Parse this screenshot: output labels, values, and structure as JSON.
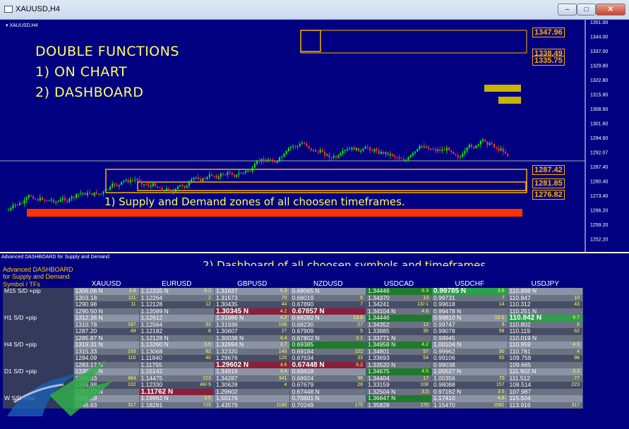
{
  "window": {
    "title": "XAUUSD,H4",
    "min": "–",
    "max": "□",
    "close": "✕"
  },
  "chart": {
    "symbol_tag": "▾ XAUUSD,H4",
    "overlay": {
      "line1": "DOUBLE FUNCTIONS",
      "line2": "1) ON CHART",
      "line3": "2) DASHBOARD"
    },
    "zone_note": "1) Supply and Demand zones of all choosen timeframes.",
    "levels": [
      "1347.96",
      "1338.49",
      "1335.75",
      "1287.42",
      "1281.85",
      "1276.82"
    ],
    "price_axis": [
      "1351.00",
      "1344.00",
      "1337.00",
      "1329.80",
      "1322.80",
      "1315.80",
      "1308.60",
      "1301.60",
      "1294.60",
      "1292.07",
      "1287.40",
      "1280.40",
      "1273.40",
      "1266.20",
      "1259.20",
      "1252.20"
    ]
  },
  "dashboard": {
    "window_caption": "Advanced DASHBOARD for Supply and Demand",
    "title": "Advanced  DASHBOARD for Supply and Demand",
    "note": "2) Dashboard of all choosen symbols and timeframes.",
    "corner": "Symbol / TFs",
    "columns": [
      "XAUUSD",
      "EURUSD",
      "GBPUSD",
      "NZDUSD",
      "USDCAD",
      "USDCHF",
      "USDJPY"
    ],
    "rows": [
      {
        "tf": "M15 S/D +pip",
        "cells": [
          [
            "1306.06 N",
            "3.8"
          ],
          [
            "1.12335 N",
            "6.2"
          ],
          [
            "1.31637",
            "5.3"
          ],
          [
            "0.68065 N",
            ""
          ],
          [
            "1.34446",
            "6.3"
          ],
          [
            "0.99785 N",
            "3.6"
          ],
          [
            "110.898 N",
            ""
          ]
        ]
      },
      {
        "tf": "",
        "cells": [
          [
            "1303.18",
            "111"
          ],
          [
            "1.12264",
            "2"
          ],
          [
            "1.31573",
            "70"
          ],
          [
            "0.68019",
            "6"
          ],
          [
            "1.34370",
            "13"
          ],
          [
            "0.99731",
            "7"
          ],
          [
            "110.847",
            "10"
          ]
        ]
      },
      {
        "tf": "",
        "cells": [
          [
            "1290.98",
            "11"
          ],
          [
            "1.12128",
            "12"
          ],
          [
            "1.30435",
            "44"
          ],
          [
            "0.67890",
            "7"
          ],
          [
            "1.34241",
            "13/-1"
          ],
          [
            "0.99618",
            "14"
          ],
          [
            "110.312",
            "43"
          ]
        ]
      },
      {
        "tf": "",
        "cells": [
          [
            "1290.50 N",
            ""
          ],
          [
            "1.12089 N",
            ""
          ],
          [
            "1.30345 N",
            "4.2"
          ],
          [
            "0.67857 N",
            ""
          ],
          [
            "1.34104 N",
            "4.6"
          ],
          [
            "0.99478 N",
            ""
          ],
          [
            "110.251 N",
            ""
          ]
        ]
      },
      {
        "tf": "H1 S/D +pip",
        "cells": [
          [
            "1312.36 N",
            ""
          ],
          [
            "1.12612",
            ""
          ],
          [
            "1.31986 N",
            "4.2"
          ],
          [
            "0.68282 N",
            "13.0"
          ],
          [
            "1.34446",
            ""
          ],
          [
            "0.99810 N",
            "12.1"
          ],
          [
            "110.842 N",
            "9.7"
          ]
        ]
      },
      {
        "tf": "",
        "cells": [
          [
            "1310.78",
            "187"
          ],
          [
            "1.12564",
            "32"
          ],
          [
            "1.31936",
            "106"
          ],
          [
            "0.68230",
            "27"
          ],
          [
            "1.34352",
            "12"
          ],
          [
            "0.99747",
            "9"
          ],
          [
            "110.802",
            "6"
          ]
        ]
      },
      {
        "tf": "",
        "cells": [
          [
            "1287.20",
            "49"
          ],
          [
            "1.12182",
            "6"
          ],
          [
            "1.30607",
            "27"
          ],
          [
            "0.67909",
            "5"
          ],
          [
            "1.33885",
            "35"
          ],
          [
            "0.99078",
            "58"
          ],
          [
            "110.119",
            "62"
          ]
        ]
      },
      {
        "tf": "",
        "cells": [
          [
            "1285.87 N",
            ""
          ],
          [
            "1.12128 N",
            ""
          ],
          [
            "1.30038 N",
            "4.4"
          ],
          [
            "0.67802 N",
            "3.1"
          ],
          [
            "1.33771 N",
            ""
          ],
          [
            "0.98945",
            ""
          ],
          [
            "110.019 N",
            ""
          ]
        ]
      },
      {
        "tf": "H4 S/D +pip",
        "cells": [
          [
            "1319.31 N",
            ""
          ],
          [
            "1.13260 N",
            "3.5"
          ],
          [
            "1.32694 N",
            "3.7"
          ],
          [
            "0.69385",
            ""
          ],
          [
            "1.34958 N",
            "4.2"
          ],
          [
            "1.00104 N",
            ""
          ],
          [
            "110.959",
            "4.3"
          ]
        ]
      },
      {
        "tf": "",
        "cells": [
          [
            "1315.33",
            "233"
          ],
          [
            "1.13068",
            "82"
          ],
          [
            "1.32320",
            "145"
          ],
          [
            "0.69184",
            "122"
          ],
          [
            "1.34801",
            "57"
          ],
          [
            "0.99962",
            "30"
          ],
          [
            "110.781",
            "4"
          ]
        ]
      },
      {
        "tf": "",
        "cells": [
          [
            "1284.09",
            "110"
          ],
          [
            "1.11840",
            "40"
          ],
          [
            "1.29676",
            "120"
          ],
          [
            "0.67634",
            "33"
          ],
          [
            "1.33693",
            "54"
          ],
          [
            "0.99106",
            "55"
          ],
          [
            "109.759",
            "98"
          ]
        ]
      },
      {
        "tf": "",
        "cells": [
          [
            "1283.17 N",
            ""
          ],
          [
            "1.11755",
            ""
          ],
          [
            "1.29602 N",
            "4.6"
          ],
          [
            "0.67448 N",
            "5.2"
          ],
          [
            "1.33520 N",
            ""
          ],
          [
            "0.99038",
            ""
          ],
          [
            "109.665",
            ""
          ]
        ]
      },
      {
        "tf": "D1 S/D +pip",
        "cells": [
          [
            "1330.18 N",
            ""
          ],
          [
            "1.15142",
            ""
          ],
          [
            "1.34916",
            "3.4"
          ],
          [
            "0.69418",
            ""
          ],
          [
            "1.34675",
            "4.5"
          ],
          [
            "1.00527 N",
            ""
          ],
          [
            "111.902 N",
            "3.3"
          ]
        ]
      },
      {
        "tf": "",
        "cells": [
          [
            "1299.03",
            "464"
          ],
          [
            "1.14475",
            "223"
          ],
          [
            "1.34287",
            "341"
          ],
          [
            "0.68924",
            "96"
          ],
          [
            "1.34404",
            "17"
          ],
          [
            "1.00356",
            "70"
          ],
          [
            "111.512",
            "77"
          ]
        ]
      },
      {
        "tf": "",
        "cells": [
          [
            "1266.88",
            "102"
          ],
          [
            "1.12330",
            "48/-9"
          ],
          [
            "1.30628",
            "4"
          ],
          [
            "0.67679",
            "28"
          ],
          [
            "1.33159",
            "108"
          ],
          [
            "0.98088",
            "157"
          ],
          [
            "108.514",
            "223"
          ]
        ]
      },
      {
        "tf": "",
        "cells": [
          [
            "1262.22 N",
            ""
          ],
          [
            "1.11762 N",
            ""
          ],
          [
            "1.29602",
            ""
          ],
          [
            "0.67448 N",
            ""
          ],
          [
            "1.32504 N",
            "3.5"
          ],
          [
            "0.97162 N",
            "3.5"
          ],
          [
            "107.987",
            ""
          ]
        ]
      },
      {
        "tf": "W S/D +pip",
        "cells": [
          [
            "1365.29",
            ""
          ],
          [
            "1.19962 N",
            "3.5"
          ],
          [
            "1.50176",
            ""
          ],
          [
            "0.70601 N",
            ""
          ],
          [
            "1.36647 N",
            ""
          ],
          [
            "1.17410",
            "4.6"
          ],
          [
            "115.504",
            ""
          ]
        ]
      },
      {
        "tf": "",
        "cells": [
          [
            "1346.63",
            "317"
          ],
          [
            "1.18281",
            "715"
          ],
          [
            "1.43579",
            "1180"
          ],
          [
            "0.70249",
            "175"
          ],
          [
            "1.35828",
            "170"
          ],
          [
            "1.15470",
            "1581"
          ],
          [
            "113.916",
            "317"
          ]
        ]
      }
    ]
  },
  "colors": {
    "chart_bg": "#000080",
    "bull": "#00ff00",
    "bear": "#ff3333",
    "zone": "#ffb000",
    "highlight": "#ff3300"
  }
}
